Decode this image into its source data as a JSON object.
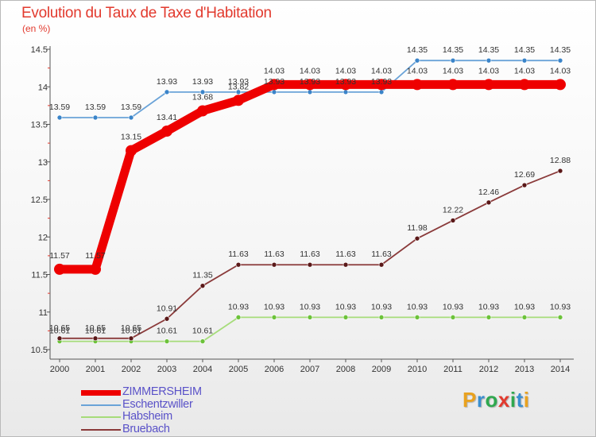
{
  "title": "Evolution du Taux de Taxe d'Habitation",
  "subtitle": "(en %)",
  "logo": {
    "text": "Proxiti",
    "letters": [
      {
        "char": "P",
        "color": "#e9a21f"
      },
      {
        "char": "r",
        "color": "#3a8fd0"
      },
      {
        "char": "o",
        "color": "#2fa84f"
      },
      {
        "char": "x",
        "color": "#e23a2e"
      },
      {
        "char": "i",
        "color": "#2fa84f"
      },
      {
        "char": "t",
        "color": "#3a8fd0"
      },
      {
        "char": "i",
        "color": "#e9a21f"
      }
    ]
  },
  "chart_data": {
    "type": "line",
    "title": "Evolution du Taux de Taxe d'Habitation",
    "ylabel": "(en %)",
    "xlabel": "",
    "ylim": [
      10.5,
      14.5
    ],
    "yticks": [
      10.5,
      11,
      11.5,
      12,
      12.5,
      13,
      13.5,
      14,
      14.5
    ],
    "ytick_labels": [
      "10.5",
      "11",
      "11.5",
      "12",
      "12.5",
      "13",
      "13.5",
      "14",
      "14.5"
    ],
    "x": [
      "2000",
      "2001",
      "2002",
      "2003",
      "2004",
      "2005",
      "2006",
      "2007",
      "2008",
      "2009",
      "2010",
      "2011",
      "2012",
      "2013",
      "2014"
    ],
    "grid": false,
    "legend_position": "bottom-left",
    "series": [
      {
        "name": "Eschentzwiller",
        "color": "#6aa3d8",
        "marker": "#3a84c9",
        "width": "thin",
        "thick": false,
        "values": [
          13.59,
          13.59,
          13.59,
          13.93,
          13.93,
          13.93,
          13.93,
          13.93,
          13.93,
          13.93,
          14.35,
          14.35,
          14.35,
          14.35,
          14.35
        ],
        "labels": [
          "13.59",
          "13.59",
          "13.59",
          "13.93",
          "13.93",
          "13.93",
          "13.93",
          "13.93",
          "13.93",
          "13.93",
          "14.35",
          "14.35",
          "14.35",
          "14.35",
          "14.35"
        ]
      },
      {
        "name": "Habsheim",
        "color": "#a6dc7a",
        "marker": "#6cc23a",
        "width": "thin",
        "thick": false,
        "values": [
          10.61,
          10.61,
          10.61,
          10.61,
          10.61,
          10.93,
          10.93,
          10.93,
          10.93,
          10.93,
          10.93,
          10.93,
          10.93,
          10.93,
          10.93
        ],
        "labels": [
          "10.61",
          "10.61",
          "10.61",
          "10.61",
          "10.61",
          "10.93",
          "10.93",
          "10.93",
          "10.93",
          "10.93",
          "10.93",
          "10.93",
          "10.93",
          "10.93",
          "10.93"
        ]
      },
      {
        "name": "Bruebach",
        "color": "#8a3a3a",
        "marker": "#5a1818",
        "width": "thin",
        "thick": false,
        "values": [
          10.65,
          10.65,
          10.65,
          10.91,
          11.35,
          11.63,
          11.63,
          11.63,
          11.63,
          11.63,
          11.98,
          12.22,
          12.46,
          12.69,
          12.88
        ],
        "labels": [
          "10.65",
          "10.65",
          "10.65",
          "10.91",
          "11.35",
          "11.63",
          "11.63",
          "11.63",
          "11.63",
          "11.63",
          "11.98",
          "12.22",
          "12.46",
          "12.69",
          "12.88"
        ]
      },
      {
        "name": "ZIMMERSHEIM",
        "color": "#ee0000",
        "marker": "#ee0000",
        "width": "thick",
        "thick": true,
        "values": [
          11.57,
          11.57,
          13.15,
          13.41,
          13.68,
          13.82,
          14.03,
          14.03,
          14.03,
          14.03,
          14.03,
          14.03,
          14.03,
          14.03,
          14.03
        ],
        "labels": [
          "11.57",
          "11.57",
          "13.15",
          "13.41",
          "13.68",
          "13.82",
          "14.03",
          "14.03",
          "14.03",
          "14.03",
          "14.03",
          "14.03",
          "14.03",
          "14.03",
          "14.03"
        ]
      }
    ],
    "legend": [
      {
        "name": "ZIMMERSHEIM",
        "color": "#ee0000",
        "thick": true
      },
      {
        "name": "Eschentzwiller",
        "color": "#6aa3d8",
        "thick": false
      },
      {
        "name": "Habsheim",
        "color": "#a6dc7a",
        "thick": false
      },
      {
        "name": "Bruebach",
        "color": "#8a3a3a",
        "thick": false
      }
    ]
  }
}
